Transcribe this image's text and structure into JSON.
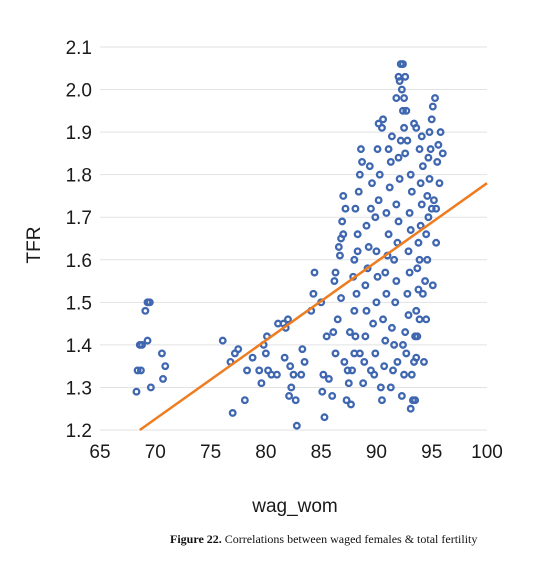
{
  "chart_data": {
    "type": "scatter",
    "xlabel": "wag_wom",
    "ylabel": "TFR",
    "xlim": [
      65,
      100
    ],
    "ylim": [
      1.2,
      2.1
    ],
    "xticks": [
      "65",
      "70",
      "75",
      "80",
      "85",
      "90",
      "95",
      "100"
    ],
    "yticks": [
      "1.2",
      "1.3",
      "1.4",
      "1.5",
      "1.6",
      "1.7",
      "1.8",
      "1.9",
      "2.0",
      "2.1"
    ],
    "grid": "horizontal",
    "marker_color": "#3f67b0",
    "trendline_color": "#ee7d22",
    "trendline": {
      "x": [
        68.6,
        100
      ],
      "y": [
        1.2,
        1.78
      ]
    },
    "points": [
      [
        68.3,
        1.29
      ],
      [
        68.4,
        1.34
      ],
      [
        68.6,
        1.4
      ],
      [
        68.8,
        1.4
      ],
      [
        68.7,
        1.34
      ],
      [
        69.1,
        1.48
      ],
      [
        69.3,
        1.5
      ],
      [
        69.5,
        1.5
      ],
      [
        69.3,
        1.41
      ],
      [
        69.6,
        1.3
      ],
      [
        70.6,
        1.38
      ],
      [
        70.9,
        1.35
      ],
      [
        70.7,
        1.32
      ],
      [
        76.1,
        1.41
      ],
      [
        76.8,
        1.36
      ],
      [
        77.0,
        1.24
      ],
      [
        77.2,
        1.38
      ],
      [
        77.5,
        1.39
      ],
      [
        78.1,
        1.27
      ],
      [
        78.3,
        1.34
      ],
      [
        78.8,
        1.37
      ],
      [
        79.4,
        1.34
      ],
      [
        79.8,
        1.4
      ],
      [
        80.0,
        1.38
      ],
      [
        80.1,
        1.42
      ],
      [
        79.6,
        1.31
      ],
      [
        80.2,
        1.34
      ],
      [
        80.5,
        1.33
      ],
      [
        81.0,
        1.33
      ],
      [
        81.1,
        1.45
      ],
      [
        81.6,
        1.45
      ],
      [
        81.8,
        1.44
      ],
      [
        81.7,
        1.37
      ],
      [
        82.0,
        1.46
      ],
      [
        82.2,
        1.35
      ],
      [
        82.3,
        1.3
      ],
      [
        82.1,
        1.28
      ],
      [
        82.7,
        1.27
      ],
      [
        82.8,
        1.21
      ],
      [
        82.5,
        1.33
      ],
      [
        83.3,
        1.39
      ],
      [
        83.2,
        1.33
      ],
      [
        83.5,
        1.36
      ],
      [
        84.1,
        1.48
      ],
      [
        84.3,
        1.52
      ],
      [
        84.4,
        1.57
      ],
      [
        85.0,
        1.5
      ],
      [
        85.2,
        1.33
      ],
      [
        85.1,
        1.29
      ],
      [
        85.3,
        1.23
      ],
      [
        85.7,
        1.32
      ],
      [
        86.0,
        1.28
      ],
      [
        86.3,
        1.38
      ],
      [
        86.1,
        1.43
      ],
      [
        86.5,
        1.46
      ],
      [
        86.2,
        1.55
      ],
      [
        86.3,
        1.57
      ],
      [
        86.7,
        1.61
      ],
      [
        86.6,
        1.63
      ],
      [
        86.8,
        1.65
      ],
      [
        87.0,
        1.66
      ],
      [
        86.9,
        1.69
      ],
      [
        87.2,
        1.72
      ],
      [
        87.0,
        1.75
      ],
      [
        87.1,
        1.36
      ],
      [
        87.4,
        1.34
      ],
      [
        87.5,
        1.31
      ],
      [
        87.3,
        1.27
      ],
      [
        87.7,
        1.26
      ],
      [
        87.8,
        1.34
      ],
      [
        88.0,
        1.38
      ],
      [
        88.1,
        1.42
      ],
      [
        88.0,
        1.48
      ],
      [
        88.2,
        1.52
      ],
      [
        87.9,
        1.56
      ],
      [
        88.0,
        1.6
      ],
      [
        88.3,
        1.62
      ],
      [
        88.3,
        1.66
      ],
      [
        88.1,
        1.72
      ],
      [
        88.4,
        1.76
      ],
      [
        88.5,
        1.8
      ],
      [
        88.7,
        1.83
      ],
      [
        88.6,
        1.86
      ],
      [
        88.9,
        1.36
      ],
      [
        89.0,
        1.42
      ],
      [
        89.1,
        1.48
      ],
      [
        89.0,
        1.54
      ],
      [
        89.2,
        1.58
      ],
      [
        89.3,
        1.63
      ],
      [
        89.1,
        1.68
      ],
      [
        89.5,
        1.72
      ],
      [
        89.6,
        1.78
      ],
      [
        89.4,
        1.82
      ],
      [
        89.8,
        1.33
      ],
      [
        89.9,
        1.38
      ],
      [
        89.7,
        1.45
      ],
      [
        90.0,
        1.5
      ],
      [
        90.1,
        1.56
      ],
      [
        90.0,
        1.62
      ],
      [
        89.9,
        1.7
      ],
      [
        90.2,
        1.74
      ],
      [
        90.3,
        1.8
      ],
      [
        90.1,
        1.86
      ],
      [
        90.2,
        1.92
      ],
      [
        90.5,
        1.91
      ],
      [
        90.6,
        1.93
      ],
      [
        90.4,
        1.3
      ],
      [
        90.7,
        1.35
      ],
      [
        90.8,
        1.41
      ],
      [
        90.6,
        1.46
      ],
      [
        90.9,
        1.52
      ],
      [
        90.8,
        1.57
      ],
      [
        91.0,
        1.61
      ],
      [
        91.1,
        1.66
      ],
      [
        90.9,
        1.71
      ],
      [
        91.2,
        1.77
      ],
      [
        91.3,
        1.83
      ],
      [
        91.1,
        1.86
      ],
      [
        91.4,
        1.89
      ],
      [
        91.5,
        1.34
      ],
      [
        91.6,
        1.4
      ],
      [
        91.4,
        1.44
      ],
      [
        91.7,
        1.5
      ],
      [
        91.8,
        1.55
      ],
      [
        91.6,
        1.6
      ],
      [
        91.9,
        1.64
      ],
      [
        92.0,
        1.69
      ],
      [
        91.8,
        1.73
      ],
      [
        92.1,
        1.79
      ],
      [
        92.0,
        1.84
      ],
      [
        92.2,
        1.88
      ],
      [
        91.8,
        1.98
      ],
      [
        92.0,
        2.03
      ],
      [
        92.2,
        2.06
      ],
      [
        92.4,
        2.06
      ],
      [
        92.1,
        2.02
      ],
      [
        92.3,
        2.0
      ],
      [
        92.5,
        1.98
      ],
      [
        92.4,
        1.95
      ],
      [
        92.6,
        2.03
      ],
      [
        92.7,
        1.95
      ],
      [
        92.5,
        1.91
      ],
      [
        92.8,
        1.88
      ],
      [
        92.6,
        1.85
      ],
      [
        92.3,
        1.28
      ],
      [
        92.5,
        1.33
      ],
      [
        92.7,
        1.38
      ],
      [
        92.6,
        1.43
      ],
      [
        92.9,
        1.47
      ],
      [
        92.8,
        1.52
      ],
      [
        93.0,
        1.57
      ],
      [
        92.9,
        1.62
      ],
      [
        93.1,
        1.67
      ],
      [
        93.0,
        1.71
      ],
      [
        93.2,
        1.76
      ],
      [
        93.1,
        1.8
      ],
      [
        93.1,
        1.25
      ],
      [
        93.3,
        1.27
      ],
      [
        93.5,
        1.27
      ],
      [
        93.2,
        1.33
      ],
      [
        93.4,
        1.36
      ],
      [
        93.6,
        1.37
      ],
      [
        93.5,
        1.42
      ],
      [
        93.7,
        1.42
      ],
      [
        93.6,
        1.48
      ],
      [
        93.8,
        1.53
      ],
      [
        93.7,
        1.58
      ],
      [
        93.9,
        1.6
      ],
      [
        93.8,
        1.64
      ],
      [
        94.0,
        1.68
      ],
      [
        94.1,
        1.73
      ],
      [
        94.0,
        1.78
      ],
      [
        94.2,
        1.82
      ],
      [
        93.9,
        1.86
      ],
      [
        94.1,
        1.89
      ],
      [
        93.6,
        1.91
      ],
      [
        93.4,
        1.92
      ],
      [
        94.3,
        1.36
      ],
      [
        94.5,
        1.46
      ],
      [
        94.4,
        1.55
      ],
      [
        94.6,
        1.6
      ],
      [
        94.5,
        1.66
      ],
      [
        94.7,
        1.7
      ],
      [
        94.6,
        1.75
      ],
      [
        94.8,
        1.79
      ],
      [
        94.7,
        1.84
      ],
      [
        94.9,
        1.86
      ],
      [
        94.8,
        1.9
      ],
      [
        95.0,
        1.93
      ],
      [
        95.1,
        1.96
      ],
      [
        95.3,
        1.98
      ],
      [
        95.0,
        1.72
      ],
      [
        95.2,
        1.74
      ],
      [
        95.4,
        1.72
      ],
      [
        95.5,
        1.83
      ],
      [
        95.6,
        1.87
      ],
      [
        95.8,
        1.9
      ],
      [
        96.0,
        1.85
      ],
      [
        95.7,
        1.78
      ],
      [
        95.4,
        1.64
      ],
      [
        95.1,
        1.54
      ],
      [
        94.2,
        1.52
      ],
      [
        93.9,
        1.46
      ],
      [
        92.4,
        1.4
      ],
      [
        91.9,
        1.36
      ],
      [
        91.3,
        1.3
      ],
      [
        90.5,
        1.27
      ],
      [
        89.5,
        1.34
      ],
      [
        88.8,
        1.31
      ],
      [
        88.5,
        1.38
      ],
      [
        87.6,
        1.43
      ],
      [
        86.8,
        1.51
      ],
      [
        85.5,
        1.42
      ]
    ]
  },
  "caption": {
    "label": "Figure 22.",
    "text": "Correlations between waged females & total fertility"
  }
}
